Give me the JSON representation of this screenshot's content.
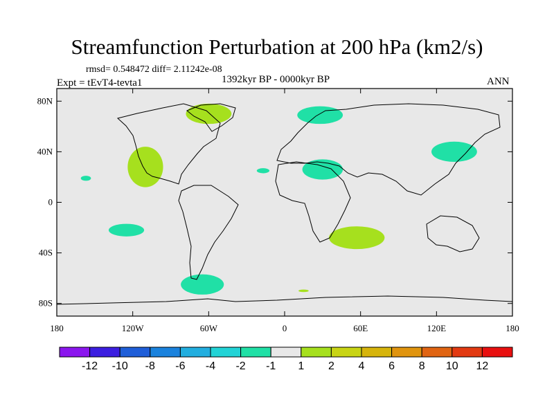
{
  "title": "Streamfunction Perturbation at 200 hPa (km2/s)",
  "subtitle": "rmsd= 0.548472 diff= 2.11242e-08",
  "left_label": "Expt = tEvT4-tevta1",
  "center_label": "1392kyr BP - 0000kyr BP",
  "right_label": "ANN",
  "map": {
    "lat_ticks": [
      {
        "lat": 80,
        "label": "80N"
      },
      {
        "lat": 40,
        "label": "40N"
      },
      {
        "lat": 0,
        "label": "0"
      },
      {
        "lat": -40,
        "label": "40S"
      },
      {
        "lat": -80,
        "label": "80S"
      }
    ],
    "lon_ticks": [
      {
        "lon": -180,
        "label": "180"
      },
      {
        "lon": -120,
        "label": "120W"
      },
      {
        "lon": -60,
        "label": "60W"
      },
      {
        "lon": 0,
        "label": "0"
      },
      {
        "lon": 60,
        "label": "60E"
      },
      {
        "lon": 120,
        "label": "120E"
      },
      {
        "lon": 180,
        "label": "180"
      }
    ],
    "anomalies": [
      {
        "name": "greenland-positive",
        "lon": -60,
        "lat": 70,
        "rlon": 18,
        "rlat": 8,
        "value": 1
      },
      {
        "name": "north-america-positive",
        "lon": -110,
        "lat": 28,
        "rlon": 14,
        "rlat": 16,
        "value": 1
      },
      {
        "name": "scandinavia-negative",
        "lon": 28,
        "lat": 69,
        "rlon": 18,
        "rlat": 7,
        "value": -1
      },
      {
        "name": "north-africa-negative",
        "lon": 30,
        "lat": 26,
        "rlon": 16,
        "rlat": 8,
        "value": -1
      },
      {
        "name": "atlantic-negative",
        "lon": -17,
        "lat": 25,
        "rlon": 5,
        "rlat": 2,
        "value": -1
      },
      {
        "name": "hawaii-negative",
        "lon": -157,
        "lat": 19,
        "rlon": 4,
        "rlat": 2,
        "value": -1
      },
      {
        "name": "east-asia-negative",
        "lon": 134,
        "lat": 40,
        "rlon": 18,
        "rlat": 8,
        "value": -1
      },
      {
        "name": "south-pacific-negative",
        "lon": -125,
        "lat": -22,
        "rlon": 14,
        "rlat": 5,
        "value": -1
      },
      {
        "name": "indian-ocean-positive",
        "lon": 57,
        "lat": -28,
        "rlon": 22,
        "rlat": 9,
        "value": 1
      },
      {
        "name": "drake-passage-negative",
        "lon": -65,
        "lat": -65,
        "rlon": 17,
        "rlat": 8,
        "value": -1
      },
      {
        "name": "antarctic-positive",
        "lon": 15,
        "lat": -70,
        "rlon": 4,
        "rlat": 1,
        "value": 1
      }
    ]
  },
  "colorbar": {
    "colors": [
      "#8b16ee",
      "#3c1ee0",
      "#1f5ed8",
      "#1a82dd",
      "#22aedf",
      "#22d3d6",
      "#20e0a6",
      "#e8e8e8",
      "#a6e01e",
      "#c8d414",
      "#d6b40c",
      "#e0940e",
      "#e06412",
      "#e23a12",
      "#e81010"
    ],
    "labels": [
      "-12",
      "-10",
      "-8",
      "-6",
      "-4",
      "-2",
      "-1",
      "1",
      "2",
      "4",
      "6",
      "8",
      "10",
      "12"
    ],
    "neg_color": "#20e0a6",
    "pos_color": "#a6e01e"
  }
}
